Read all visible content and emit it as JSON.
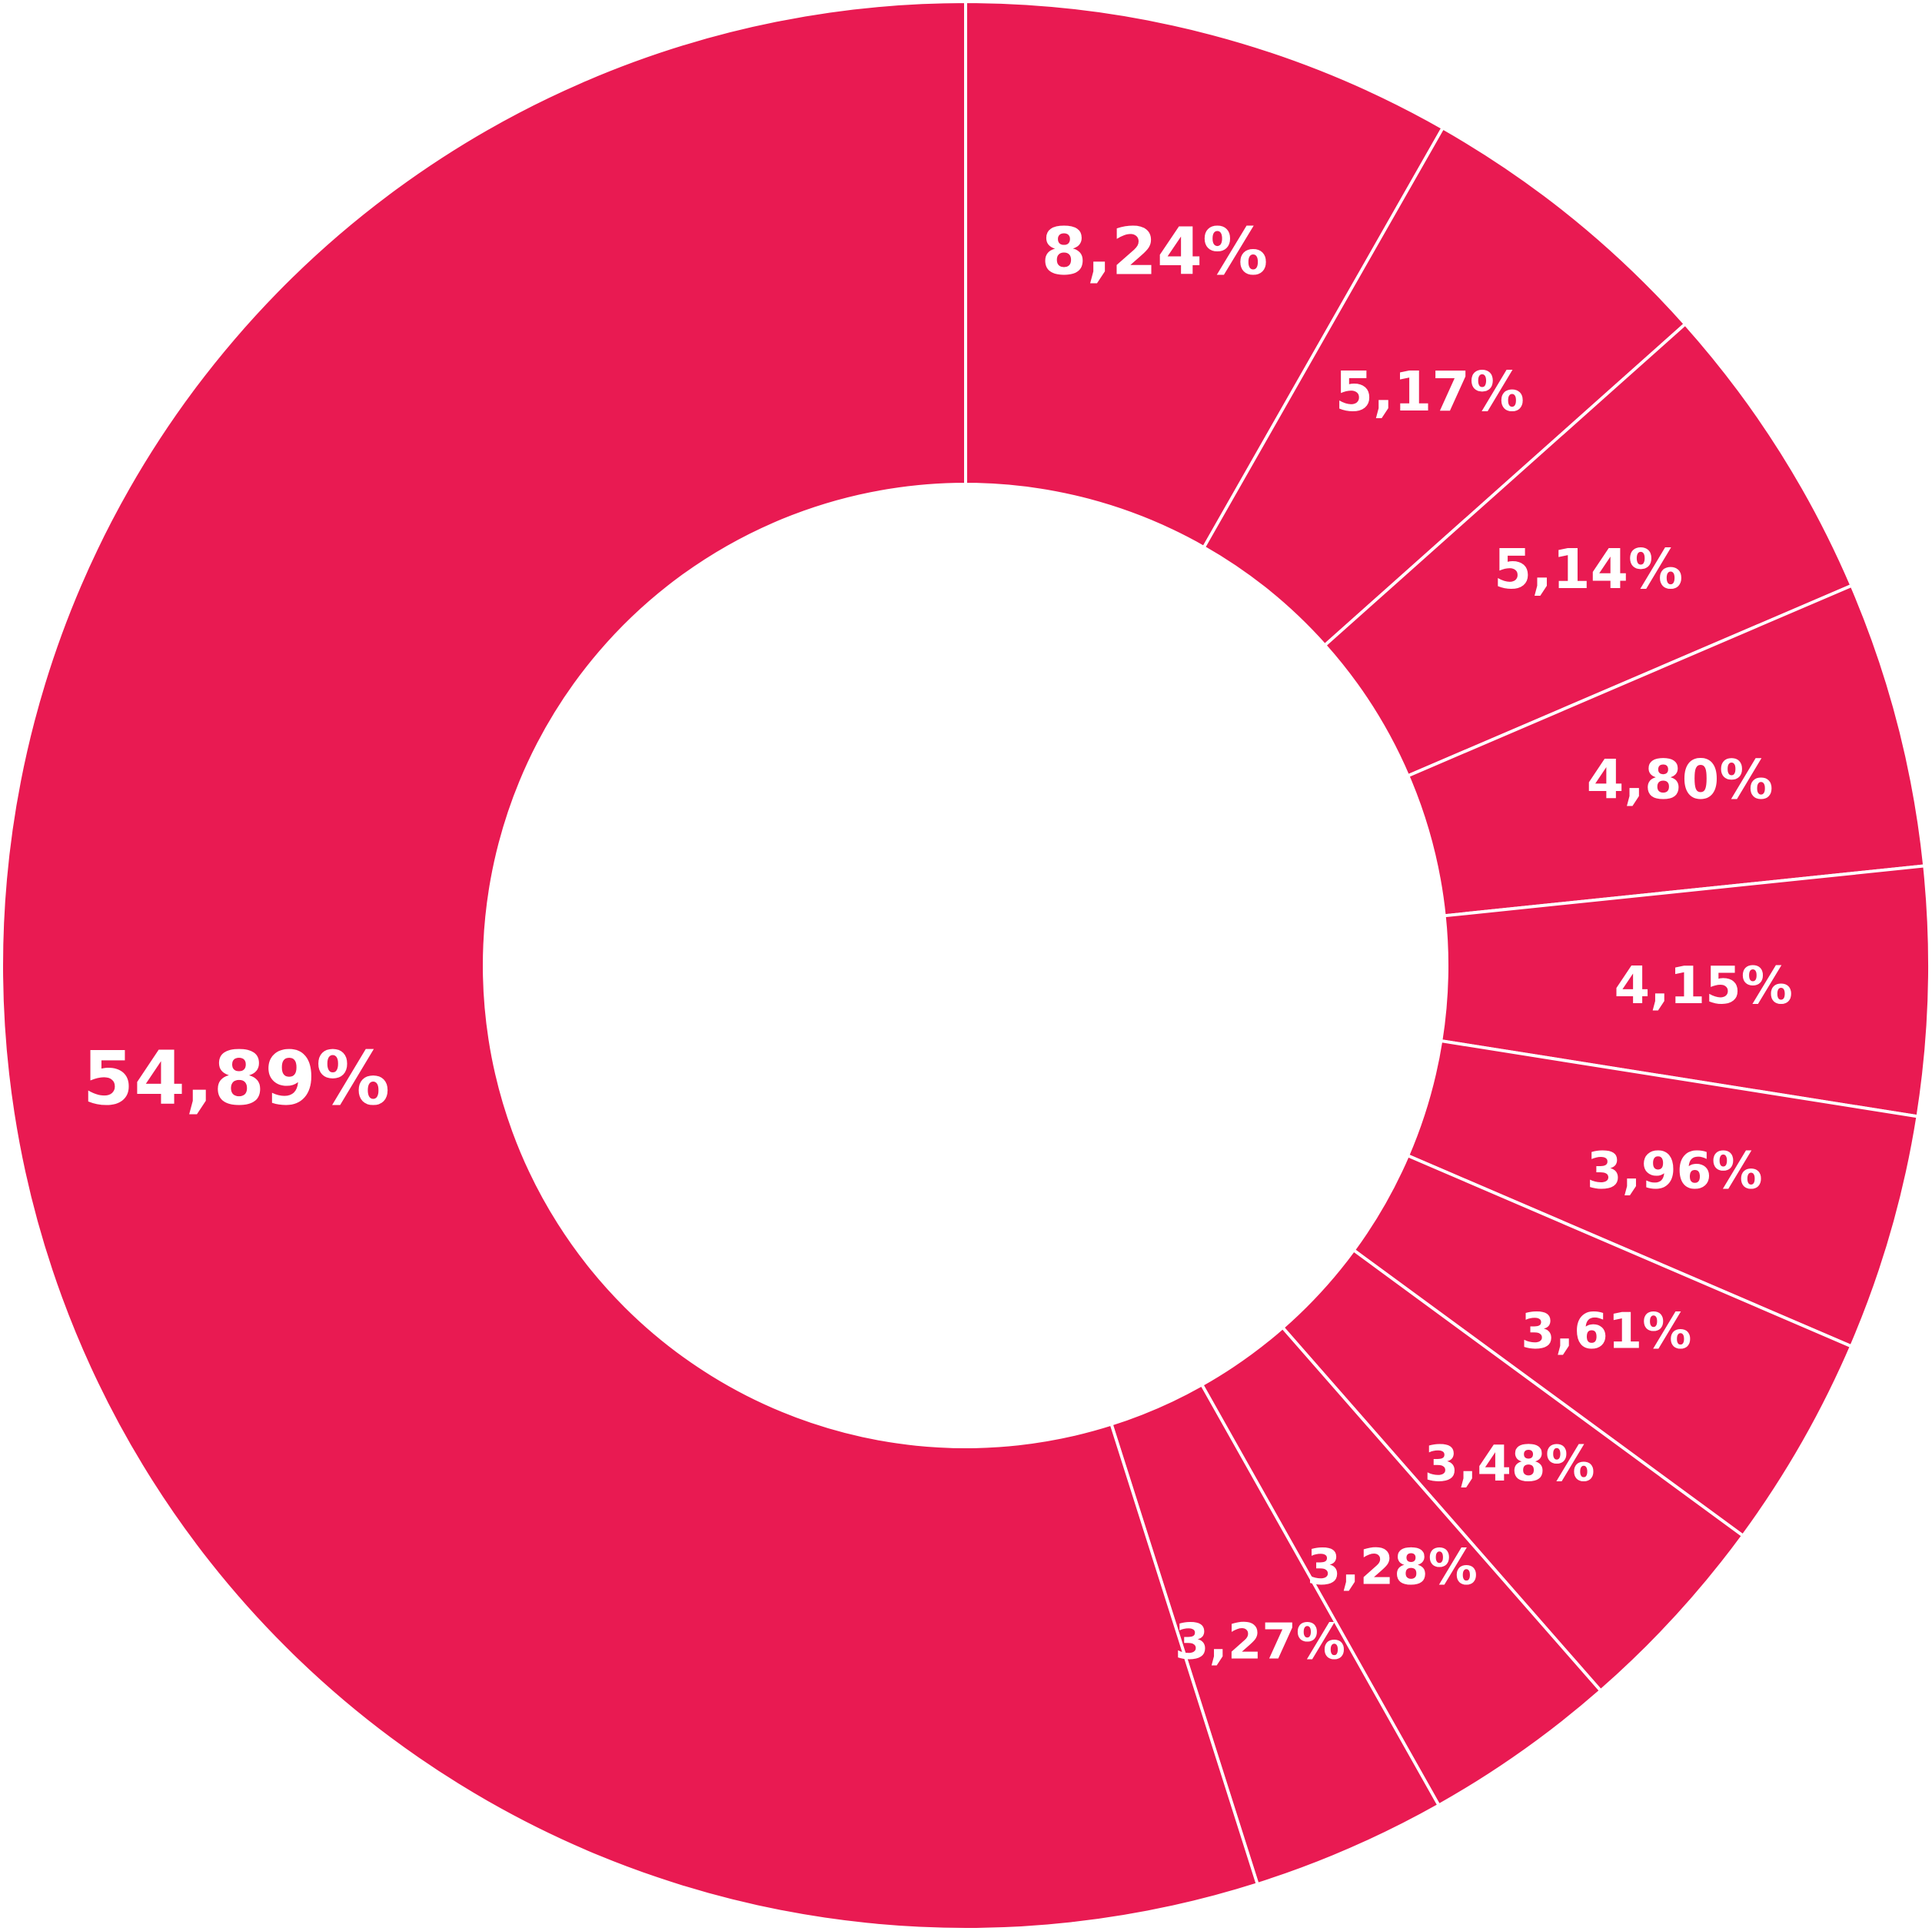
{
  "chart_data": {
    "type": "pie",
    "variant": "donut",
    "title": "",
    "start_angle_deg": 0,
    "direction": "clockwise",
    "legend": "none",
    "slice_color": "#E91A52",
    "separator_color": "#FFFFFF",
    "background_color": "#FFFFFF",
    "slices": [
      {
        "value": 8.24,
        "label": "8,24%"
      },
      {
        "value": 5.17,
        "label": "5,17%"
      },
      {
        "value": 5.14,
        "label": "5,14%"
      },
      {
        "value": 4.8,
        "label": "4,80%"
      },
      {
        "value": 4.15,
        "label": "4,15%"
      },
      {
        "value": 3.96,
        "label": "3,96%"
      },
      {
        "value": 3.61,
        "label": "3,61%"
      },
      {
        "value": 3.48,
        "label": "3,48%"
      },
      {
        "value": 3.28,
        "label": "3,28%"
      },
      {
        "value": 3.27,
        "label": "3,27%"
      },
      {
        "value": 54.89,
        "label": "54,89%"
      }
    ]
  }
}
